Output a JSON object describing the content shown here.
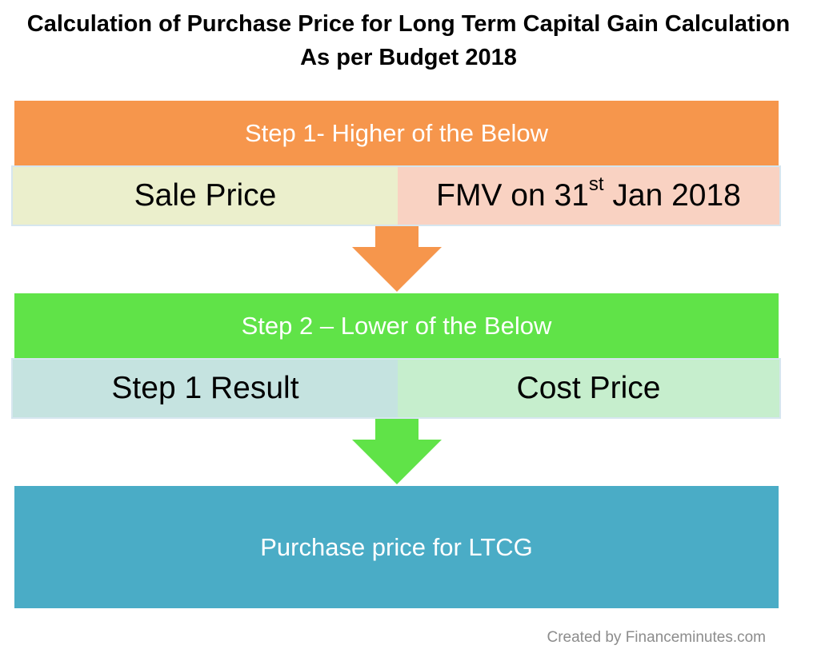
{
  "title": {
    "line1": "Calculation of Purchase Price for Long Term Capital Gain Calculation",
    "line2": "As per Budget 2018"
  },
  "step1": {
    "header": "Step 1- Higher of the Below",
    "left": "Sale Price",
    "right_prefix": "FMV on 31",
    "right_sup": "st",
    "right_suffix": " Jan 2018"
  },
  "step2": {
    "header": "Step 2 – Lower of the Below",
    "left": "Step 1 Result",
    "right": "Cost Price"
  },
  "result": {
    "label": "Purchase price for LTCG"
  },
  "credit": "Created by Financeminutes.com",
  "colors": {
    "step1_header": "#f6964c",
    "step1_left": "#ebefcc",
    "step1_right": "#f9d2c2",
    "step2_header": "#60e348",
    "step2_left": "#c5e3e0",
    "step2_right": "#c6eecd",
    "result": "#4aacc6",
    "arrow1": "#f6964c",
    "arrow2": "#60e348"
  }
}
